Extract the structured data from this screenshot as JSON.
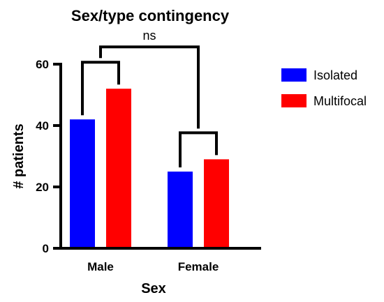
{
  "chart_data": {
    "type": "bar",
    "title": "Sex/type contingency",
    "xlabel": "Sex",
    "ylabel": "# patients",
    "categories": [
      "Male",
      "Female"
    ],
    "series": [
      {
        "name": "Isolated",
        "values": [
          42,
          25
        ],
        "color": "#0000ff"
      },
      {
        "name": "Multifocal",
        "values": [
          52,
          29
        ],
        "color": "#ff0000"
      }
    ],
    "ylim": [
      0,
      60
    ],
    "yticks": [
      0,
      20,
      40,
      60
    ],
    "legend_position": "right",
    "grid": false,
    "annotations": [
      {
        "type": "significance-bracket",
        "text": "ns",
        "between": [
          "Male",
          "Female"
        ]
      }
    ]
  }
}
